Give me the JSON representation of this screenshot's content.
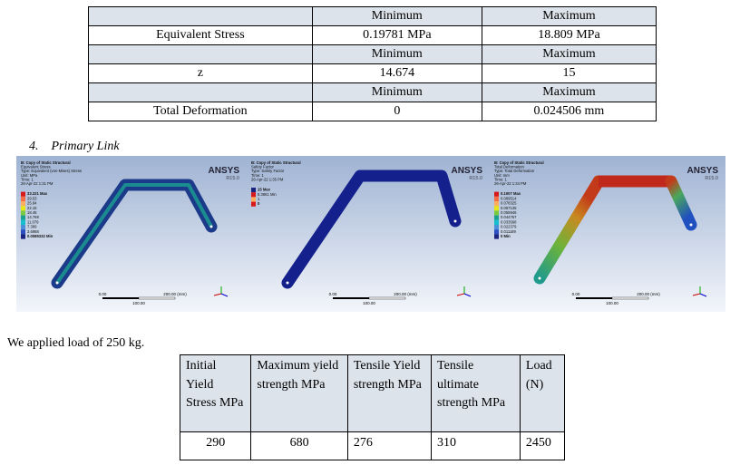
{
  "table1": {
    "groups": [
      {
        "header": [
          "Minimum",
          "Maximum"
        ],
        "label": "Equivalent Stress",
        "values": [
          "0.19781 MPa",
          "18.809 MPa"
        ]
      },
      {
        "header": [
          "Minimum",
          "Maximum"
        ],
        "label": "z",
        "values": [
          "14.674",
          "15"
        ]
      },
      {
        "header": [
          "Minimum",
          "Maximum"
        ],
        "label": "Total Deformation",
        "values": [
          "0",
          "0.024506 mm"
        ]
      }
    ]
  },
  "section": {
    "number": "4.",
    "title": "Primary Link"
  },
  "figures": [
    {
      "header": [
        "B: Copy of Static Structural",
        "Equivalent Stress",
        "Type: Equivalent (von-Mises) Stress",
        "Unit: MPa",
        "Time: 1",
        "26-Apr-22 1:31 PM"
      ],
      "legend": [
        "33.221 Max",
        "29.53",
        "25.84",
        "22.15",
        "18.46",
        "14.769",
        "11.079",
        "7.389",
        "3.6988",
        "0.0085332 Min"
      ],
      "logo": "ANSYS",
      "version": "R15.0",
      "scale": [
        "0.00",
        "200.00 (mm)",
        "100.00"
      ]
    },
    {
      "header": [
        "B: Copy of Static Structural",
        "Safety Factor",
        "Type: Safety Factor",
        "Time: 1",
        "26-Apr-22 1:35 PM"
      ],
      "legend": [
        "15 Max",
        "8.3861 Min",
        "1",
        "0"
      ],
      "logo": "ANSYS",
      "version": "R15.0",
      "scale": [
        "0.00",
        "200.00 (mm)",
        "100.00"
      ]
    },
    {
      "header": [
        "B: Copy of Static Structural",
        "Total Deformation",
        "Type: Total Deformation",
        "Unit: mm",
        "Time: 1",
        "26-Apr-22 1:34 PM"
      ],
      "legend": [
        "0.1007 Max",
        "0.089514",
        "0.078325",
        "0.067135",
        "0.055946",
        "0.044757",
        "0.033568",
        "0.022379",
        "0.011189",
        "0 Min"
      ],
      "logo": "ANSYS",
      "version": "R15.0",
      "scale": [
        "0.00",
        "200.00 (mm)",
        "100.00"
      ]
    }
  ],
  "sentence": "We applied load of 250 kg.",
  "table2": {
    "header": [
      "Initial Yield Stress MPa",
      "Maximum yield strength MPa",
      "Tensile Yield strength MPa",
      "Tensile ultimate strength MPa",
      "Load (N)"
    ],
    "row": [
      "290",
      "680",
      "276",
      "310",
      "2450"
    ]
  }
}
